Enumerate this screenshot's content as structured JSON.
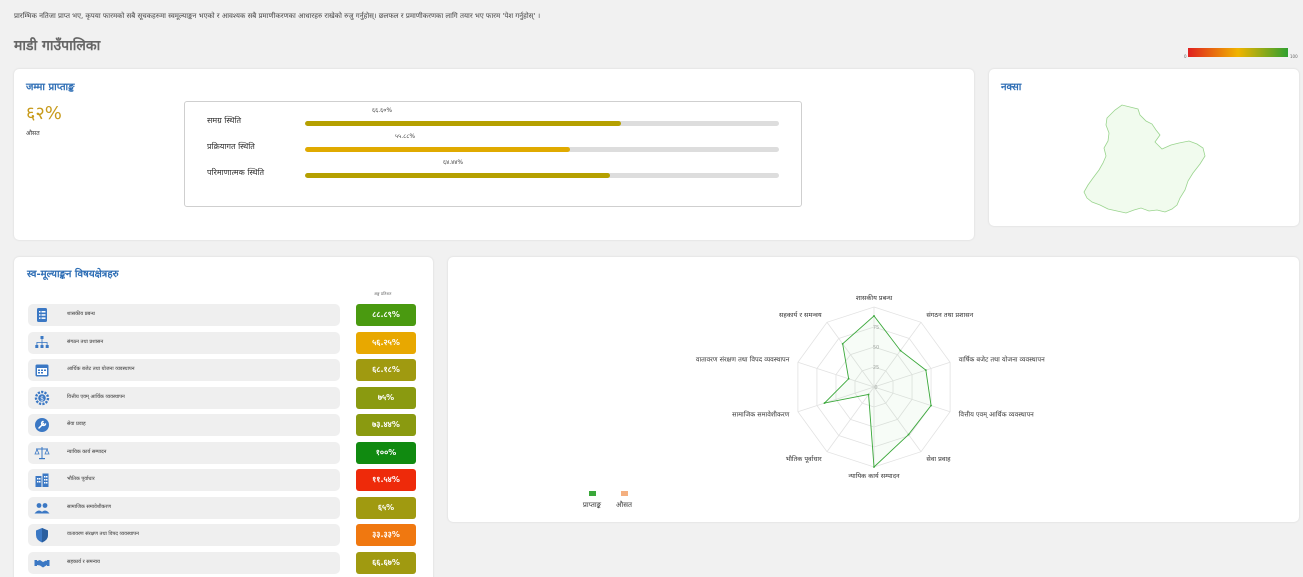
{
  "notice": "प्रारम्भिक नतिजा प्राप्त भए, कृपया फारमको सबै सूचकहरुमा स्वमूल्याङ्कन भएको र आवश्यक सबै प्रमाणीकरणका आधारहरु राखेको रुजु गर्नुहोस्। छलफल र प्रमाणीकरणका लागि तयार भए फारम 'पेश गर्नुहोस्' ।",
  "municipality": "माडी गाउँपालिका",
  "legend": {
    "min": "0",
    "max": "100",
    "colors": [
      "#e02020",
      "#f0b400",
      "#30a030"
    ]
  },
  "score_card": {
    "title": "जम्मा प्राप्ताङ्क",
    "percent": "६२%",
    "avg_label": "औसत",
    "rows": [
      {
        "label": "समग्र स्थिति",
        "value_text": "६६.६०%",
        "value": 66.6,
        "color": "#b5a000"
      },
      {
        "label": "प्रक्रियागत स्थिति",
        "value_text": "५५.८८%",
        "value": 55.88,
        "color": "#e0aa00"
      },
      {
        "label": "परिमाणात्मक स्थिति",
        "value_text": "६४.४४%",
        "value": 64.44,
        "color": "#b5a000"
      }
    ]
  },
  "map_card": {
    "title": "नक्सा"
  },
  "topics_card": {
    "title": "स्व-मूल्याङ्कन विषयक्षेत्रहरु",
    "col_header": "अङ्क प्रतिशत",
    "items": [
      {
        "label": "शासकीय प्रबन्ध",
        "value": "८८.८९%",
        "color": "#4a9a10",
        "icon": "document-list-icon"
      },
      {
        "label": "संगठन तथा प्रशासन",
        "value": "५६.२५%",
        "color": "#e8a800",
        "icon": "org-chart-icon"
      },
      {
        "label": "आर्थिक बजेट तथा योजना व्यवस्थापन",
        "value": "६८.१८%",
        "color": "#a09a10",
        "icon": "calendar-icon"
      },
      {
        "label": "वित्तीय एवम् आर्थिक व्यवस्थापन",
        "value": "७५%",
        "color": "#8a9a10",
        "icon": "finance-gear-icon"
      },
      {
        "label": "सेवा प्रवाह",
        "value": "७३.४४%",
        "color": "#8a9a10",
        "icon": "service-icon"
      },
      {
        "label": "न्यायिक कार्य सम्पादन",
        "value": "१००%",
        "color": "#108a10",
        "icon": "scales-icon"
      },
      {
        "label": "भौतिक पूर्वाधार",
        "value": "११.५४%",
        "color": "#ee2a0a",
        "icon": "building-icon"
      },
      {
        "label": "सामाजिक समावेशीकरण",
        "value": "६५%",
        "color": "#a09a10",
        "icon": "people-icon"
      },
      {
        "label": "वातावरण संरक्षण तथा विपद व्यवस्थापन",
        "value": "३३.३३%",
        "color": "#f07810",
        "icon": "shield-icon"
      },
      {
        "label": "सहकार्य र समन्वय",
        "value": "६६.६७%",
        "color": "#a09a10",
        "icon": "handshake-icon"
      }
    ]
  },
  "chart_data": {
    "type": "radar",
    "axes": [
      "शासकीय प्रबन्ध",
      "संगठन तथा प्रशासन",
      "वार्षिक बजेट तथा योजना व्यवस्थापन",
      "वित्तीय एवम् आर्थिक व्यवस्थापन",
      "सेवा प्रवाह",
      "न्यायिक कार्य सम्पादन",
      "भौतिक पूर्वाधार",
      "सामाजिक समावेशीकरण",
      "वातावरण संरक्षण तथा विपद व्यवस्थापन",
      "सहकार्य र समन्वय"
    ],
    "ticks": [
      "0",
      "25",
      "50",
      "75"
    ],
    "rmax": 100,
    "series": [
      {
        "name": "प्राप्ताङ्क",
        "color": "#3aa83a",
        "values": [
          88.89,
          56.25,
          68.18,
          75,
          73.44,
          100,
          11.54,
          65,
          33.33,
          66.67
        ]
      },
      {
        "name": "औसत",
        "color": "#f4b080",
        "values": []
      }
    ],
    "legend_position": "bottom-left"
  }
}
